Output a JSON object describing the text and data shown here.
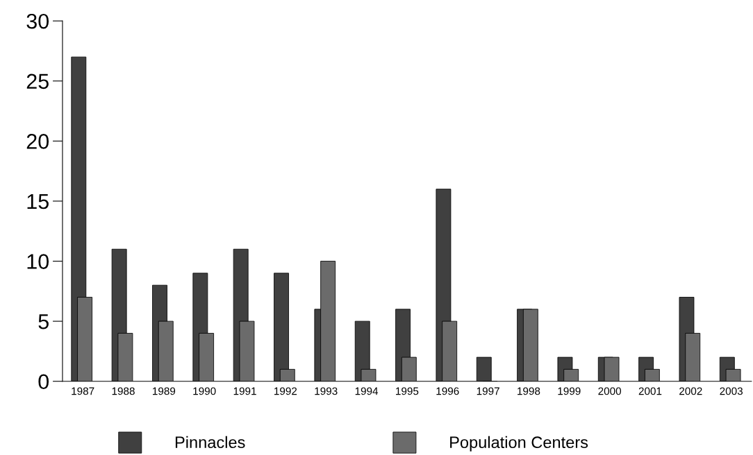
{
  "chart_data": {
    "type": "bar",
    "categories": [
      "1987",
      "1988",
      "1989",
      "1990",
      "1991",
      "1992",
      "1993",
      "1994",
      "1995",
      "1996",
      "1997",
      "1998",
      "1999",
      "2000",
      "2001",
      "2002",
      "2003"
    ],
    "series": [
      {
        "name": "Pinnacles",
        "color": "#404040",
        "values": [
          27,
          11,
          8,
          9,
          11,
          9,
          6,
          5,
          6,
          16,
          2,
          6,
          2,
          2,
          2,
          7,
          2
        ]
      },
      {
        "name": "Population Centers",
        "color": "#6b6b6b",
        "values": [
          7,
          4,
          5,
          4,
          5,
          1,
          10,
          1,
          2,
          5,
          0,
          6,
          1,
          2,
          1,
          4,
          1
        ]
      }
    ],
    "ylim": [
      0,
      30
    ],
    "yticks": [
      0,
      5,
      10,
      15,
      20,
      25,
      30
    ],
    "grid": false,
    "legend": "bottom"
  }
}
